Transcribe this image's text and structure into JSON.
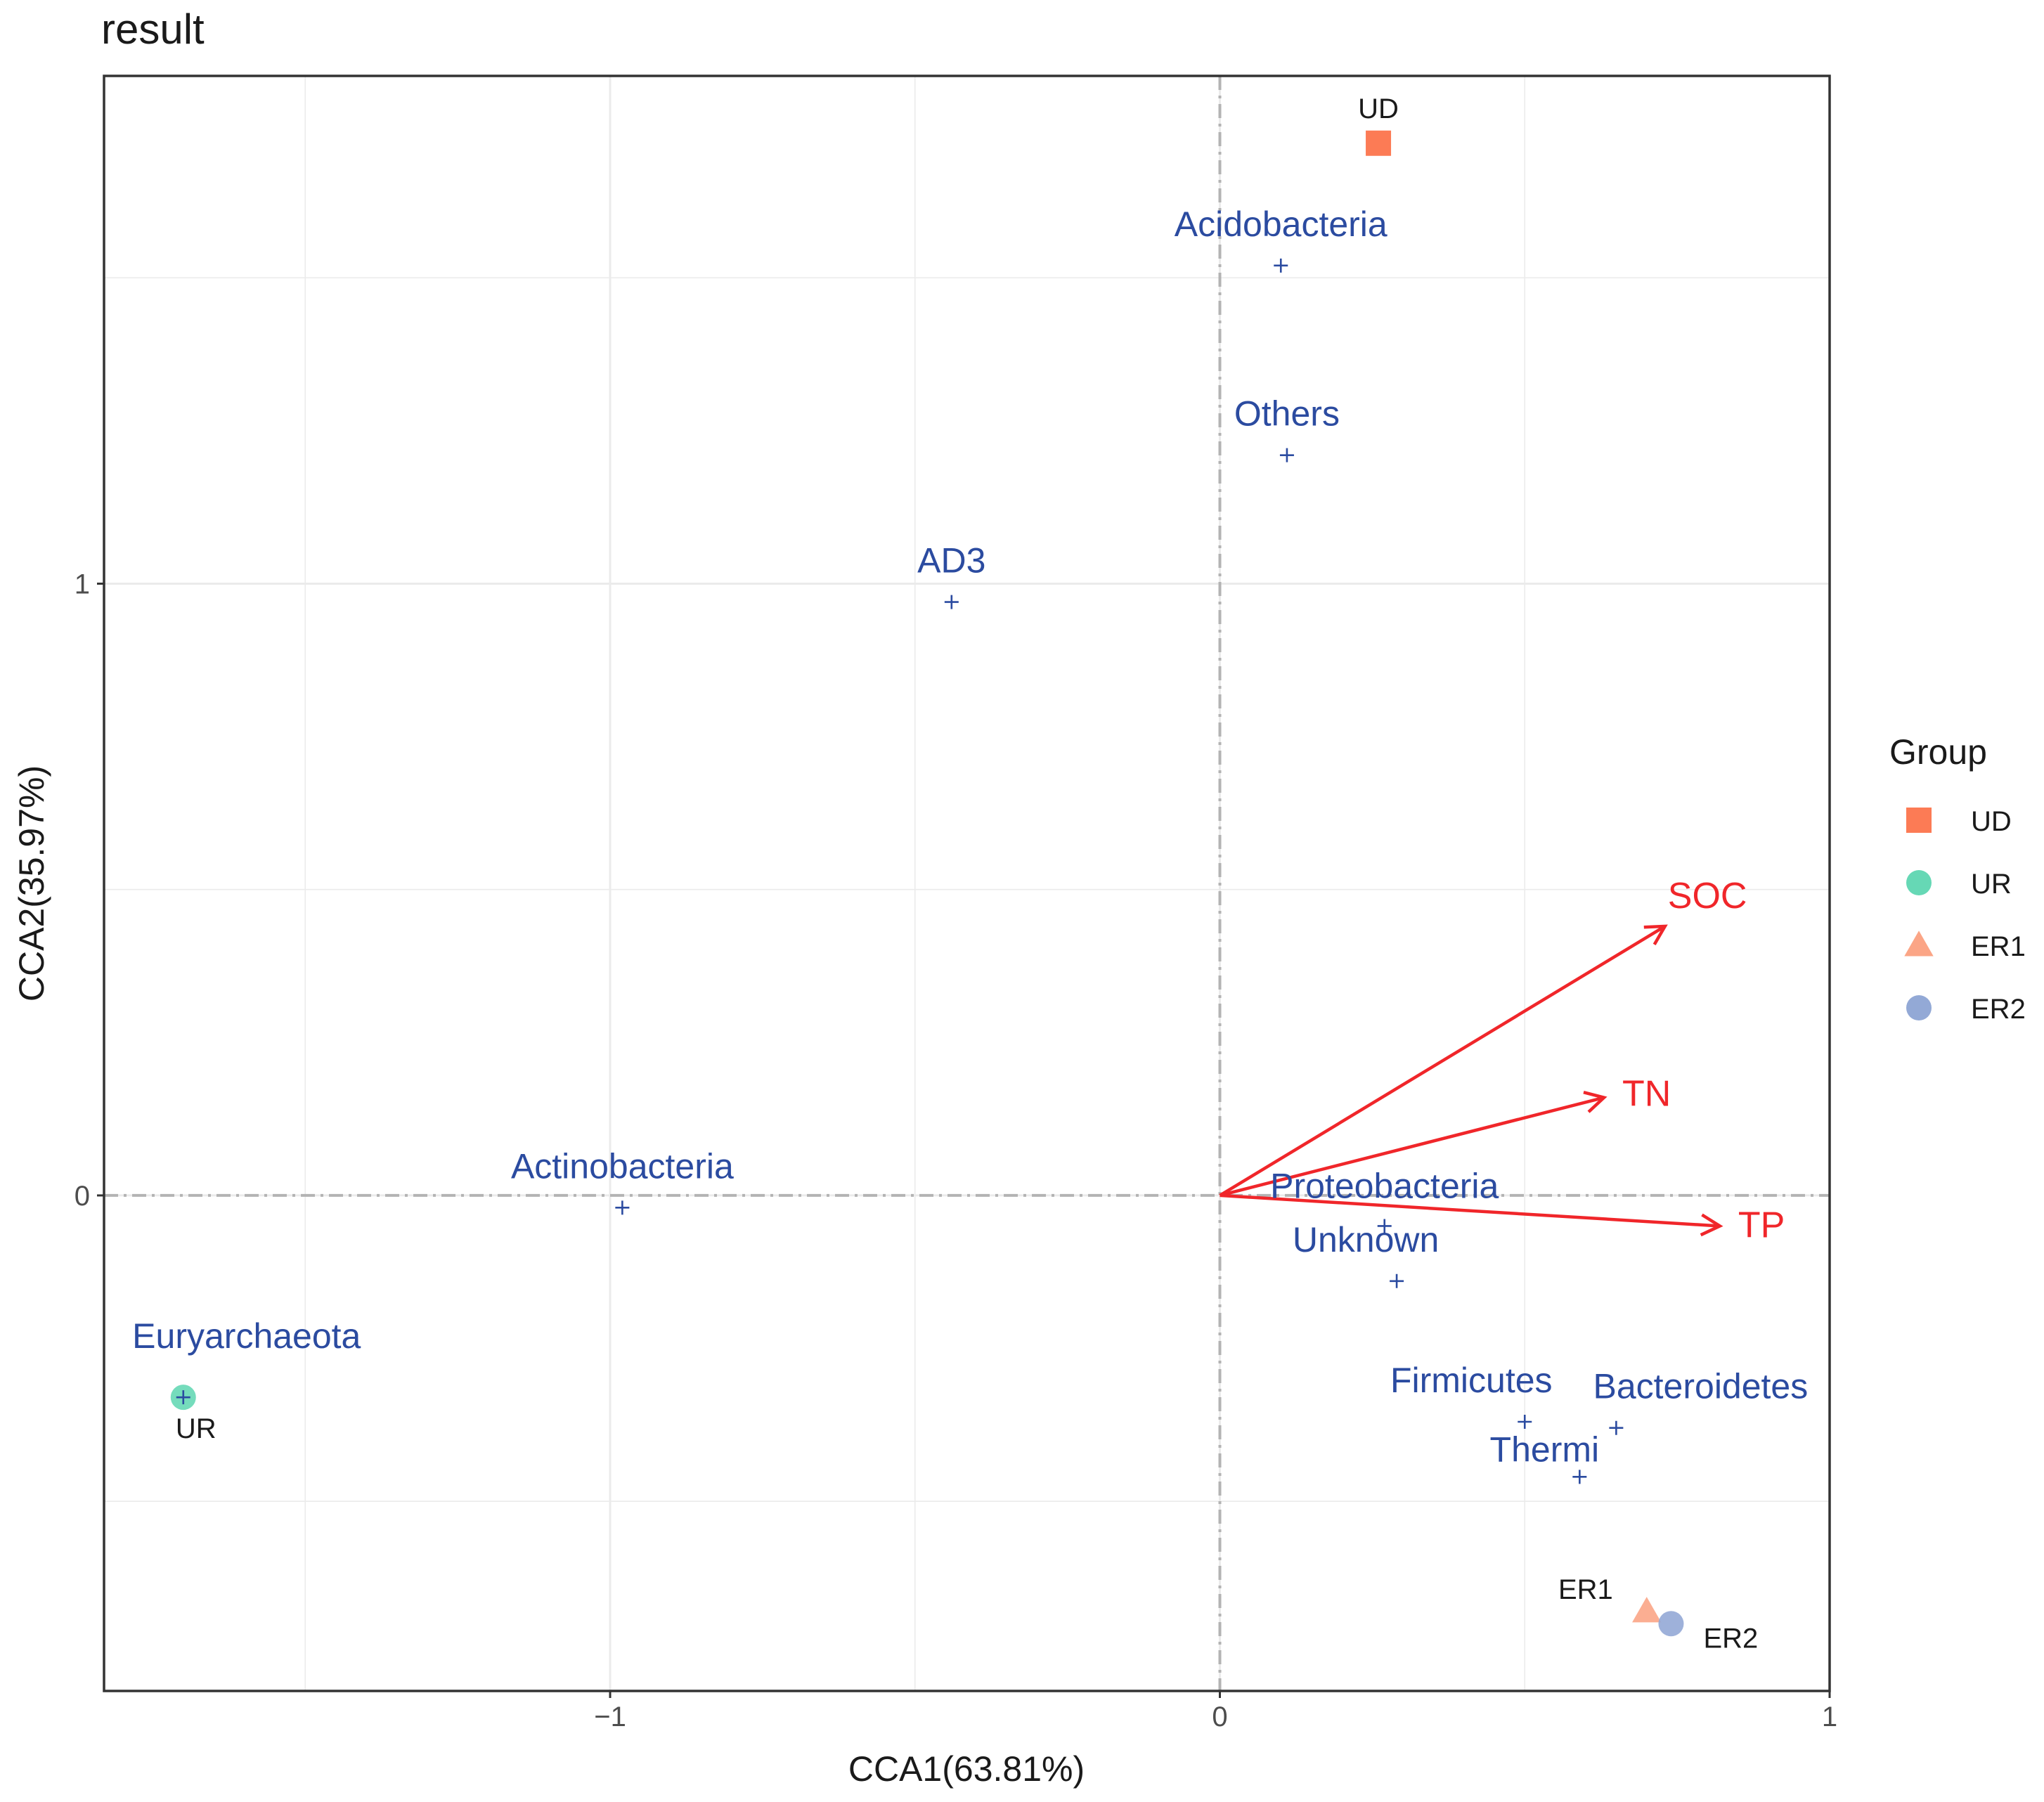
{
  "chart_data": {
    "type": "scatter",
    "title": "result",
    "xlabel": "CCA1(63.81%)",
    "ylabel": "CCA2(35.97%)",
    "xlim": [
      -1.83,
      1.0
    ],
    "ylim": [
      -0.81,
      1.83
    ],
    "x_ticks": [
      -1,
      0,
      1
    ],
    "x_tick_labels": [
      "−1",
      "0",
      "1"
    ],
    "y_ticks": [
      0,
      1
    ],
    "y_tick_labels": [
      "0",
      "1"
    ],
    "grid": true,
    "reference_lines": {
      "x": 0,
      "y": 0
    },
    "sites": [
      {
        "name": "UD",
        "group": "UD",
        "x": 0.26,
        "y": 1.72
      },
      {
        "name": "UR",
        "group": "UR",
        "x": -1.7,
        "y": -0.33
      },
      {
        "name": "ER1",
        "group": "ER1",
        "x": 0.7,
        "y": -0.68
      },
      {
        "name": "ER2",
        "group": "ER2",
        "x": 0.74,
        "y": -0.7
      }
    ],
    "species": [
      {
        "name": "Acidobacteria",
        "x": 0.1,
        "y": 1.52
      },
      {
        "name": "Others",
        "x": 0.11,
        "y": 1.21
      },
      {
        "name": "AD3",
        "x": -0.44,
        "y": 0.97
      },
      {
        "name": "Actinobacteria",
        "x": -0.98,
        "y": -0.02
      },
      {
        "name": "Euryarchaeota",
        "x": -1.7,
        "y": -0.33
      },
      {
        "name": "Proteobacteria",
        "x": 0.27,
        "y": -0.05
      },
      {
        "name": "Unknown",
        "x": 0.29,
        "y": -0.14
      },
      {
        "name": "Firmicutes",
        "x": 0.5,
        "y": -0.37
      },
      {
        "name": "Bacteroidetes",
        "x": 0.65,
        "y": -0.38
      },
      {
        "name": "Thermi",
        "x": 0.59,
        "y": -0.46
      }
    ],
    "env_vectors": [
      {
        "name": "SOC",
        "x": 0.73,
        "y": 0.44
      },
      {
        "name": "TN",
        "x": 0.63,
        "y": 0.16
      },
      {
        "name": "TP",
        "x": 0.82,
        "y": -0.05
      }
    ],
    "legend": {
      "title": "Group",
      "position": "right",
      "items": [
        {
          "label": "UD",
          "shape": "square",
          "color": "#fc7b55"
        },
        {
          "label": "UR",
          "shape": "circle",
          "color": "#66d8b5"
        },
        {
          "label": "ER1",
          "shape": "triangle",
          "color": "#fba586"
        },
        {
          "label": "ER2",
          "shape": "circle",
          "color": "#93a9d6"
        }
      ]
    },
    "colors": {
      "species": "#2b4ba0",
      "env": "#f0262a",
      "grid": "#ebebeb",
      "reference_line": "#b3b3b3"
    }
  }
}
